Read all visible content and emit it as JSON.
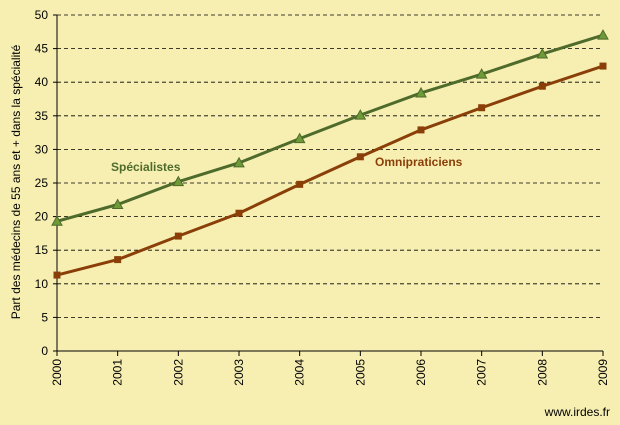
{
  "chart_data": {
    "type": "line",
    "title": "",
    "xlabel": "",
    "ylabel": "Part des médecins de 55 ans et + dans la spécialité",
    "ylim": [
      0,
      50
    ],
    "yticks": [
      0,
      5,
      10,
      15,
      20,
      25,
      30,
      35,
      40,
      45,
      50
    ],
    "grid": true,
    "categories": [
      "2000",
      "2001",
      "2002",
      "2003",
      "2004",
      "2005",
      "2006",
      "2007",
      "2008",
      "2009"
    ],
    "series": [
      {
        "name": "Spécialistes",
        "color": "#4e6b2b",
        "marker": "triangle",
        "values": [
          19.3,
          21.8,
          25.2,
          28.0,
          31.6,
          35.1,
          38.4,
          41.2,
          44.2,
          47.0
        ]
      },
      {
        "name": "Omnipraticiens",
        "color": "#8b3f08",
        "marker": "square",
        "values": [
          11.3,
          13.6,
          17.1,
          20.5,
          24.8,
          28.9,
          32.9,
          36.2,
          39.4,
          42.4
        ]
      }
    ]
  },
  "credit": "www.irdes.fr"
}
